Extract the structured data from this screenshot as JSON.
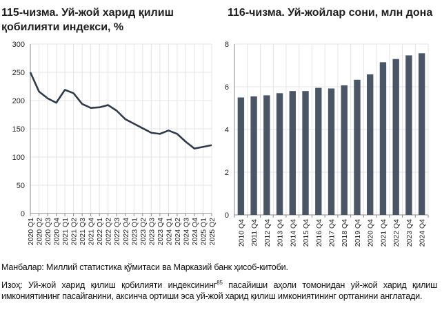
{
  "chart_data": [
    {
      "type": "line",
      "title": "115-чизма. Уй-жой харид қилиш қобилияти индекси, %",
      "categories": [
        "2020 Q1",
        "2020 Q2",
        "2020 Q3",
        "2020 Q4",
        "2021 Q1",
        "2021 Q2",
        "2021 Q3",
        "2021 Q4",
        "2022 Q1",
        "2022 Q2",
        "2022 Q3",
        "2022 Q4",
        "2023 Q1",
        "2023 Q2",
        "2023 Q3",
        "2023 Q4",
        "2024 Q1",
        "2024 Q2",
        "2024 Q3",
        "2024 Q4",
        "2025 Q1",
        "2025 Q2"
      ],
      "values": [
        250,
        216,
        204,
        196,
        219,
        213,
        194,
        187,
        188,
        192,
        182,
        167,
        159,
        151,
        143,
        141,
        147,
        141,
        127,
        115,
        118,
        121
      ],
      "ylim": [
        0,
        300
      ],
      "yticks": [
        0,
        50,
        100,
        150,
        200,
        250,
        300
      ],
      "grid": true,
      "color": "#2f3a4a"
    },
    {
      "type": "bar",
      "title": "116-чизма. Уй-жойлар сони, млн дона",
      "categories": [
        "2010 Q4",
        "2011 Q4",
        "2012 Q4",
        "2013 Q4",
        "2014 Q4",
        "2015 Q4",
        "2016 Q4",
        "2017 Q4",
        "2018 Q4",
        "2019 Q4",
        "2020 Q4",
        "2021 Q4",
        "2022 Q4",
        "2023 Q4",
        "2024 Q4"
      ],
      "values": [
        5.5,
        5.55,
        5.6,
        5.7,
        5.8,
        5.8,
        5.95,
        5.92,
        6.07,
        6.33,
        6.58,
        7.15,
        7.3,
        7.47,
        7.57
      ],
      "ylim": [
        0,
        8
      ],
      "yticks": [
        0,
        2,
        4,
        6,
        8
      ],
      "grid": true,
      "color": "#4a5565"
    }
  ],
  "source": "Манбалар: Миллий статистика қўмитаси ва Марказий банк ҳисоб-китоби.",
  "note_before": "Изоҳ: Уй-жой харид қилиш қобилияти индексининг",
  "note_sup": "85",
  "note_after": " пасайиши аҳоли томонидан уй-жой харид қилиш имкониятининг пасайганини, аксинча ортиши эса уй-жой харид қилиш имкониятининг ортганини англатади."
}
